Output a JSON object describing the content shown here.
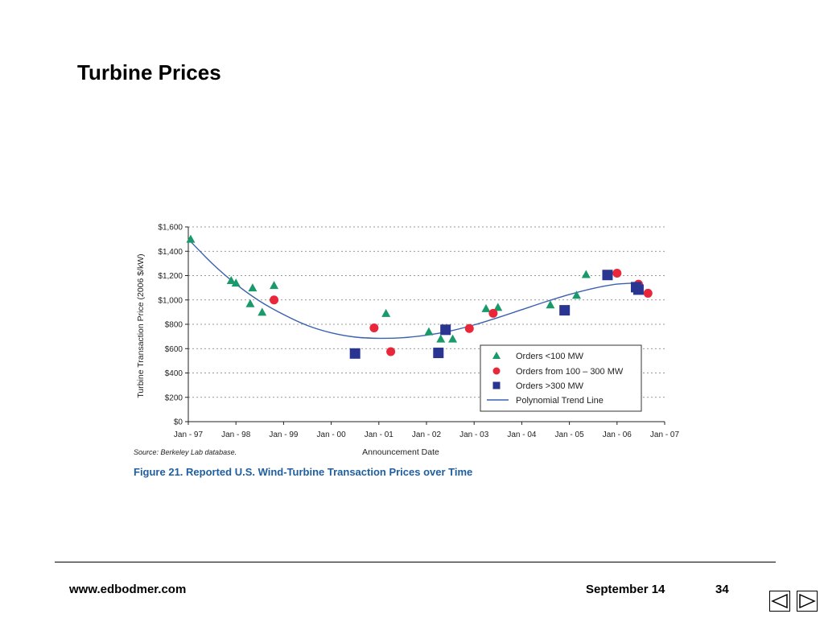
{
  "slide": {
    "title": "Turbine Prices",
    "footer": {
      "website": "www.edbodmer.com",
      "date": "September 14",
      "page": "34"
    },
    "nav": {
      "prev_icon": "prev-triangle-icon",
      "next_icon": "next-triangle-icon"
    }
  },
  "chart_data": {
    "type": "scatter",
    "title": "",
    "caption": "Figure 21.  Reported U.S. Wind-Turbine Transaction Prices over Time",
    "source": "Source: Berkeley Lab database.",
    "xlabel": "Announcement Date",
    "ylabel": "Turbine Transaction Price (2006 $/kW)",
    "x_ticks": [
      "Jan - 97",
      "Jan - 98",
      "Jan - 99",
      "Jan - 00",
      "Jan - 01",
      "Jan - 02",
      "Jan - 03",
      "Jan - 04",
      "Jan - 05",
      "Jan - 06",
      "Jan - 07"
    ],
    "y_ticks": [
      "$0",
      "$200",
      "$400",
      "$600",
      "$800",
      "$1,000",
      "$1,200",
      "$1,400",
      "$1,600"
    ],
    "xlim": [
      1997.0,
      2007.0
    ],
    "ylim": [
      0,
      1600
    ],
    "grid": "horizontal dotted",
    "legend_position": "lower-right",
    "series": [
      {
        "name": "Orders <100 MW",
        "marker": "triangle",
        "color": "#1a9a6a",
        "points": [
          {
            "x": 1997.05,
            "y": 1500
          },
          {
            "x": 1997.9,
            "y": 1160
          },
          {
            "x": 1998.0,
            "y": 1140
          },
          {
            "x": 1998.3,
            "y": 970
          },
          {
            "x": 1998.35,
            "y": 1100
          },
          {
            "x": 1998.55,
            "y": 900
          },
          {
            "x": 1998.8,
            "y": 1120
          },
          {
            "x": 2001.15,
            "y": 890
          },
          {
            "x": 2002.05,
            "y": 740
          },
          {
            "x": 2002.3,
            "y": 680
          },
          {
            "x": 2002.55,
            "y": 680
          },
          {
            "x": 2003.25,
            "y": 930
          },
          {
            "x": 2003.5,
            "y": 940
          },
          {
            "x": 2004.6,
            "y": 960
          },
          {
            "x": 2005.15,
            "y": 1040
          },
          {
            "x": 2005.35,
            "y": 1210
          }
        ]
      },
      {
        "name": "Orders from 100 – 300 MW",
        "marker": "circle",
        "color": "#e8283a",
        "points": [
          {
            "x": 1998.8,
            "y": 1000
          },
          {
            "x": 2000.9,
            "y": 770
          },
          {
            "x": 2001.25,
            "y": 575
          },
          {
            "x": 2002.9,
            "y": 765
          },
          {
            "x": 2003.4,
            "y": 890
          },
          {
            "x": 2006.0,
            "y": 1220
          },
          {
            "x": 2006.45,
            "y": 1130
          },
          {
            "x": 2006.65,
            "y": 1055
          }
        ]
      },
      {
        "name": "Orders >300 MW",
        "marker": "square",
        "color": "#2a3592",
        "points": [
          {
            "x": 2000.5,
            "y": 560
          },
          {
            "x": 2002.25,
            "y": 565
          },
          {
            "x": 2002.4,
            "y": 755
          },
          {
            "x": 2004.9,
            "y": 915
          },
          {
            "x": 2005.8,
            "y": 1205
          },
          {
            "x": 2006.4,
            "y": 1105
          },
          {
            "x": 2006.45,
            "y": 1085
          }
        ]
      }
    ],
    "trend_line": {
      "name": "Polynomial Trend Line",
      "color": "#3a60b0",
      "points": [
        {
          "x": 1997.0,
          "y": 1500
        },
        {
          "x": 1997.5,
          "y": 1300
        },
        {
          "x": 1998.0,
          "y": 1130
        },
        {
          "x": 1998.5,
          "y": 990
        },
        {
          "x": 1999.0,
          "y": 880
        },
        {
          "x": 1999.5,
          "y": 790
        },
        {
          "x": 2000.0,
          "y": 730
        },
        {
          "x": 2000.5,
          "y": 695
        },
        {
          "x": 2001.0,
          "y": 685
        },
        {
          "x": 2001.5,
          "y": 690
        },
        {
          "x": 2002.0,
          "y": 710
        },
        {
          "x": 2002.5,
          "y": 745
        },
        {
          "x": 2003.0,
          "y": 795
        },
        {
          "x": 2003.5,
          "y": 855
        },
        {
          "x": 2004.0,
          "y": 920
        },
        {
          "x": 2004.5,
          "y": 985
        },
        {
          "x": 2005.0,
          "y": 1045
        },
        {
          "x": 2005.5,
          "y": 1095
        },
        {
          "x": 2006.0,
          "y": 1130
        },
        {
          "x": 2006.5,
          "y": 1140
        }
      ]
    }
  }
}
